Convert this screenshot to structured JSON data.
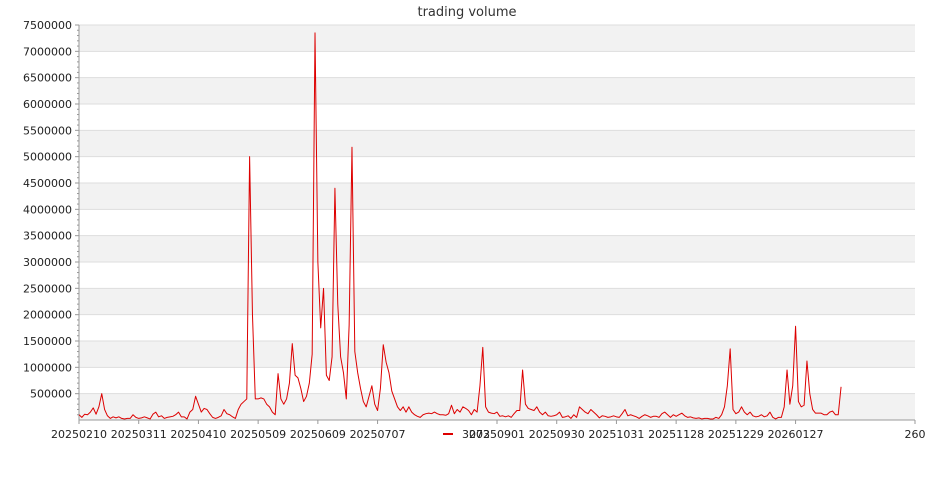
{
  "chart_data": {
    "type": "line",
    "title": "trading volume",
    "xlabel": "",
    "ylabel": "",
    "ylim": [
      0,
      7500000
    ],
    "y_ticks": [
      500000,
      1000000,
      1500000,
      2000000,
      2500000,
      3000000,
      3500000,
      4000000,
      4500000,
      5000000,
      5500000,
      6000000,
      6500000,
      7000000,
      7500000
    ],
    "x_tick_labels": [
      "20250210",
      "20250311",
      "20250410",
      "20250509",
      "20250609",
      "20250707",
      "20250901",
      "20250930",
      "20251031",
      "20251128",
      "20251229",
      "20260127",
      "260"
    ],
    "x_tick_positions": [
      0,
      21,
      42,
      63,
      84,
      105,
      147,
      168,
      189,
      210,
      231,
      252,
      294
    ],
    "grid": true,
    "legend_position": "bottom-center",
    "colors": {
      "series": "#dd0000",
      "band": "#f2f2f2",
      "grid": "#dddddd",
      "axis": "#999999"
    },
    "series": [
      {
        "name": "3073",
        "values": [
          100000,
          50000,
          110000,
          100000,
          150000,
          230000,
          110000,
          250000,
          500000,
          200000,
          80000,
          30000,
          60000,
          40000,
          60000,
          30000,
          20000,
          30000,
          30000,
          100000,
          50000,
          30000,
          40000,
          60000,
          40000,
          20000,
          110000,
          150000,
          60000,
          80000,
          30000,
          50000,
          60000,
          70000,
          100000,
          150000,
          60000,
          60000,
          20000,
          150000,
          200000,
          450000,
          300000,
          150000,
          220000,
          200000,
          120000,
          50000,
          30000,
          50000,
          80000,
          200000,
          120000,
          100000,
          60000,
          30000,
          200000,
          300000,
          350000,
          400000,
          5000000,
          2000000,
          400000,
          400000,
          420000,
          400000,
          300000,
          250000,
          150000,
          100000,
          880000,
          400000,
          300000,
          400000,
          700000,
          1450000,
          850000,
          800000,
          600000,
          350000,
          450000,
          700000,
          1250000,
          7350000,
          3000000,
          1750000,
          2500000,
          850000,
          750000,
          1200000,
          4400000,
          2200000,
          1200000,
          900000,
          400000,
          1800000,
          5180000,
          1300000,
          900000,
          600000,
          350000,
          250000,
          450000,
          650000,
          300000,
          180000,
          600000,
          1430000,
          1100000,
          900000,
          550000,
          400000,
          250000,
          180000,
          250000,
          150000,
          250000,
          150000,
          100000,
          70000,
          50000,
          100000,
          120000,
          130000,
          120000,
          150000,
          120000,
          100000,
          100000,
          90000,
          120000,
          280000,
          120000,
          200000,
          150000,
          250000,
          220000,
          180000,
          100000,
          200000,
          150000,
          650000,
          1380000,
          250000,
          150000,
          130000,
          120000,
          150000,
          70000,
          80000,
          60000,
          80000,
          50000,
          120000,
          180000,
          180000,
          950000,
          300000,
          220000,
          200000,
          180000,
          250000,
          150000,
          100000,
          150000,
          80000,
          70000,
          80000,
          100000,
          150000,
          50000,
          60000,
          80000,
          30000,
          100000,
          50000,
          250000,
          200000,
          150000,
          120000,
          200000,
          150000,
          100000,
          40000,
          80000,
          70000,
          50000,
          60000,
          80000,
          60000,
          50000,
          120000,
          200000,
          80000,
          100000,
          80000,
          60000,
          30000,
          70000,
          100000,
          80000,
          50000,
          70000,
          70000,
          50000,
          120000,
          150000,
          100000,
          50000,
          100000,
          70000,
          100000,
          130000,
          80000,
          50000,
          60000,
          40000,
          30000,
          40000,
          20000,
          30000,
          30000,
          20000,
          20000,
          50000,
          30000,
          100000,
          250000,
          650000,
          1350000,
          200000,
          120000,
          150000,
          250000,
          150000,
          100000,
          150000,
          80000,
          60000,
          70000,
          100000,
          60000,
          80000,
          150000,
          50000,
          20000,
          50000,
          50000,
          250000,
          950000,
          300000,
          650000,
          1780000,
          350000,
          250000,
          280000,
          1120000,
          500000,
          200000,
          130000,
          130000,
          130000,
          100000,
          100000,
          150000,
          170000,
          100000,
          100000,
          630000
        ]
      }
    ]
  }
}
